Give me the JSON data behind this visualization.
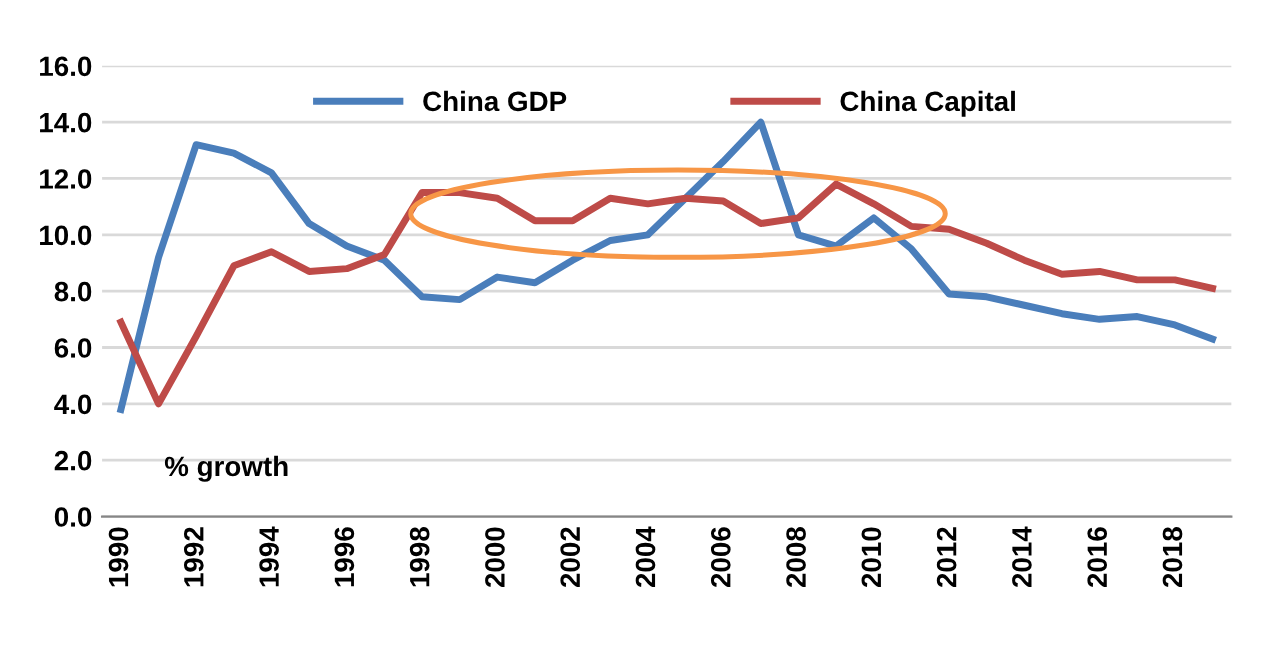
{
  "chart_data": {
    "type": "line",
    "categories": [
      "1990",
      null,
      "1992",
      null,
      "1994",
      null,
      "1996",
      null,
      "1998",
      null,
      "2000",
      null,
      "2002",
      null,
      "2004",
      null,
      "2006",
      null,
      "2008",
      null,
      "2010",
      null,
      "2012",
      null,
      "2014",
      null,
      "2016",
      null,
      "2018",
      null
    ],
    "series": [
      {
        "name": "China GDP",
        "color": "#4a7ebb",
        "values": [
          3.8,
          9.2,
          13.2,
          12.9,
          12.2,
          10.4,
          9.6,
          9.1,
          7.8,
          7.7,
          8.5,
          8.3,
          9.1,
          9.8,
          10.0,
          11.3,
          12.6,
          14.0,
          10.0,
          9.6,
          10.6,
          9.5,
          7.9,
          7.8,
          7.5,
          7.2,
          7.0,
          7.1,
          6.8,
          6.3
        ]
      },
      {
        "name": "China Capital",
        "color": "#be4b48",
        "values": [
          6.9,
          4.0,
          6.4,
          8.9,
          9.4,
          8.7,
          8.8,
          9.3,
          11.5,
          11.5,
          11.3,
          10.5,
          10.5,
          11.3,
          11.1,
          11.3,
          11.2,
          10.4,
          10.6,
          11.8,
          11.1,
          10.3,
          10.2,
          9.7,
          9.1,
          8.6,
          8.7,
          8.4,
          8.4,
          8.1
        ]
      }
    ],
    "ylim": [
      0,
      16
    ],
    "yticks": [
      {
        "value": 0,
        "label": "0.0"
      },
      {
        "value": 2,
        "label": "2.0"
      },
      {
        "value": 4,
        "label": "4.0"
      },
      {
        "value": 6,
        "label": "6.0"
      },
      {
        "value": 8,
        "label": "8.0"
      },
      {
        "value": 10,
        "label": "10.0"
      },
      {
        "value": 12,
        "label": "12.0"
      },
      {
        "value": 14,
        "label": "14.0"
      },
      {
        "value": 16,
        "label": "16.0"
      }
    ],
    "grid": "y",
    "legend": "top",
    "marker": "none",
    "line_style": "solid",
    "annotations": [
      "% growth"
    ]
  }
}
